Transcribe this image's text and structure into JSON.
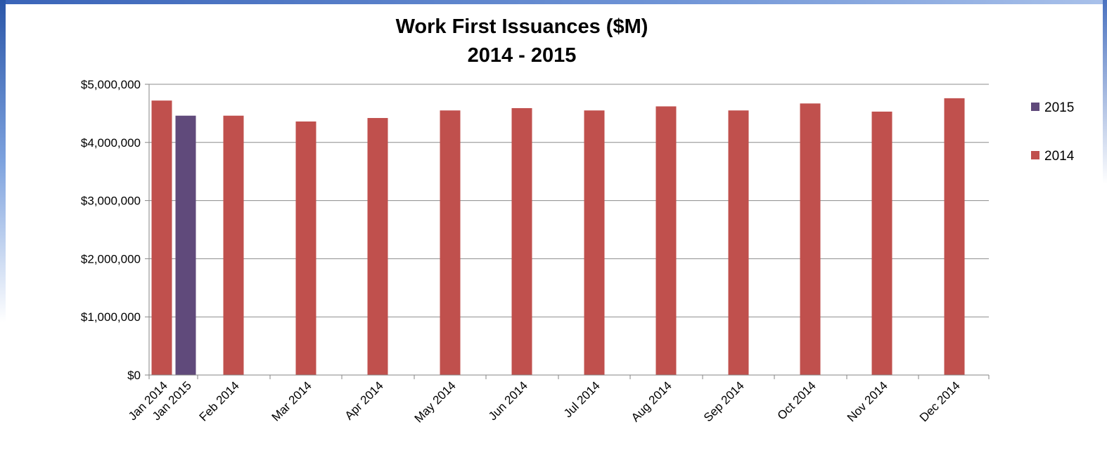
{
  "chart_data": {
    "type": "bar",
    "title": "Work First Issuances ($M)",
    "subtitle": "2014 - 2015",
    "xlabel": "",
    "ylabel": "",
    "ylim": [
      0,
      5000000
    ],
    "yticks": [
      "$0",
      "$1,000,000",
      "$2,000,000",
      "$3,000,000",
      "$4,000,000",
      "$5,000,000"
    ],
    "ytick_values": [
      0,
      1000000,
      2000000,
      3000000,
      4000000,
      5000000
    ],
    "grid": true,
    "legend_position": "right",
    "categories": [
      "Jan 2014",
      "Jan 2015",
      "Feb 2014",
      "Mar 2014",
      "Apr 2014",
      "May 2014",
      "Jun 2014",
      "Jul 2014",
      "Aug 2014",
      "Sep 2014",
      "Oct 2014",
      "Nov 2014",
      "Dec 2014"
    ],
    "series": [
      {
        "name": "2015",
        "color": "#604a7b",
        "values": [
          null,
          4460000,
          null,
          null,
          null,
          null,
          null,
          null,
          null,
          null,
          null,
          null,
          null
        ]
      },
      {
        "name": "2014",
        "color": "#c0504d",
        "values": [
          4720000,
          null,
          4460000,
          4360000,
          4420000,
          4550000,
          4590000,
          4550000,
          4620000,
          4550000,
          4670000,
          4530000,
          4760000
        ]
      }
    ]
  }
}
